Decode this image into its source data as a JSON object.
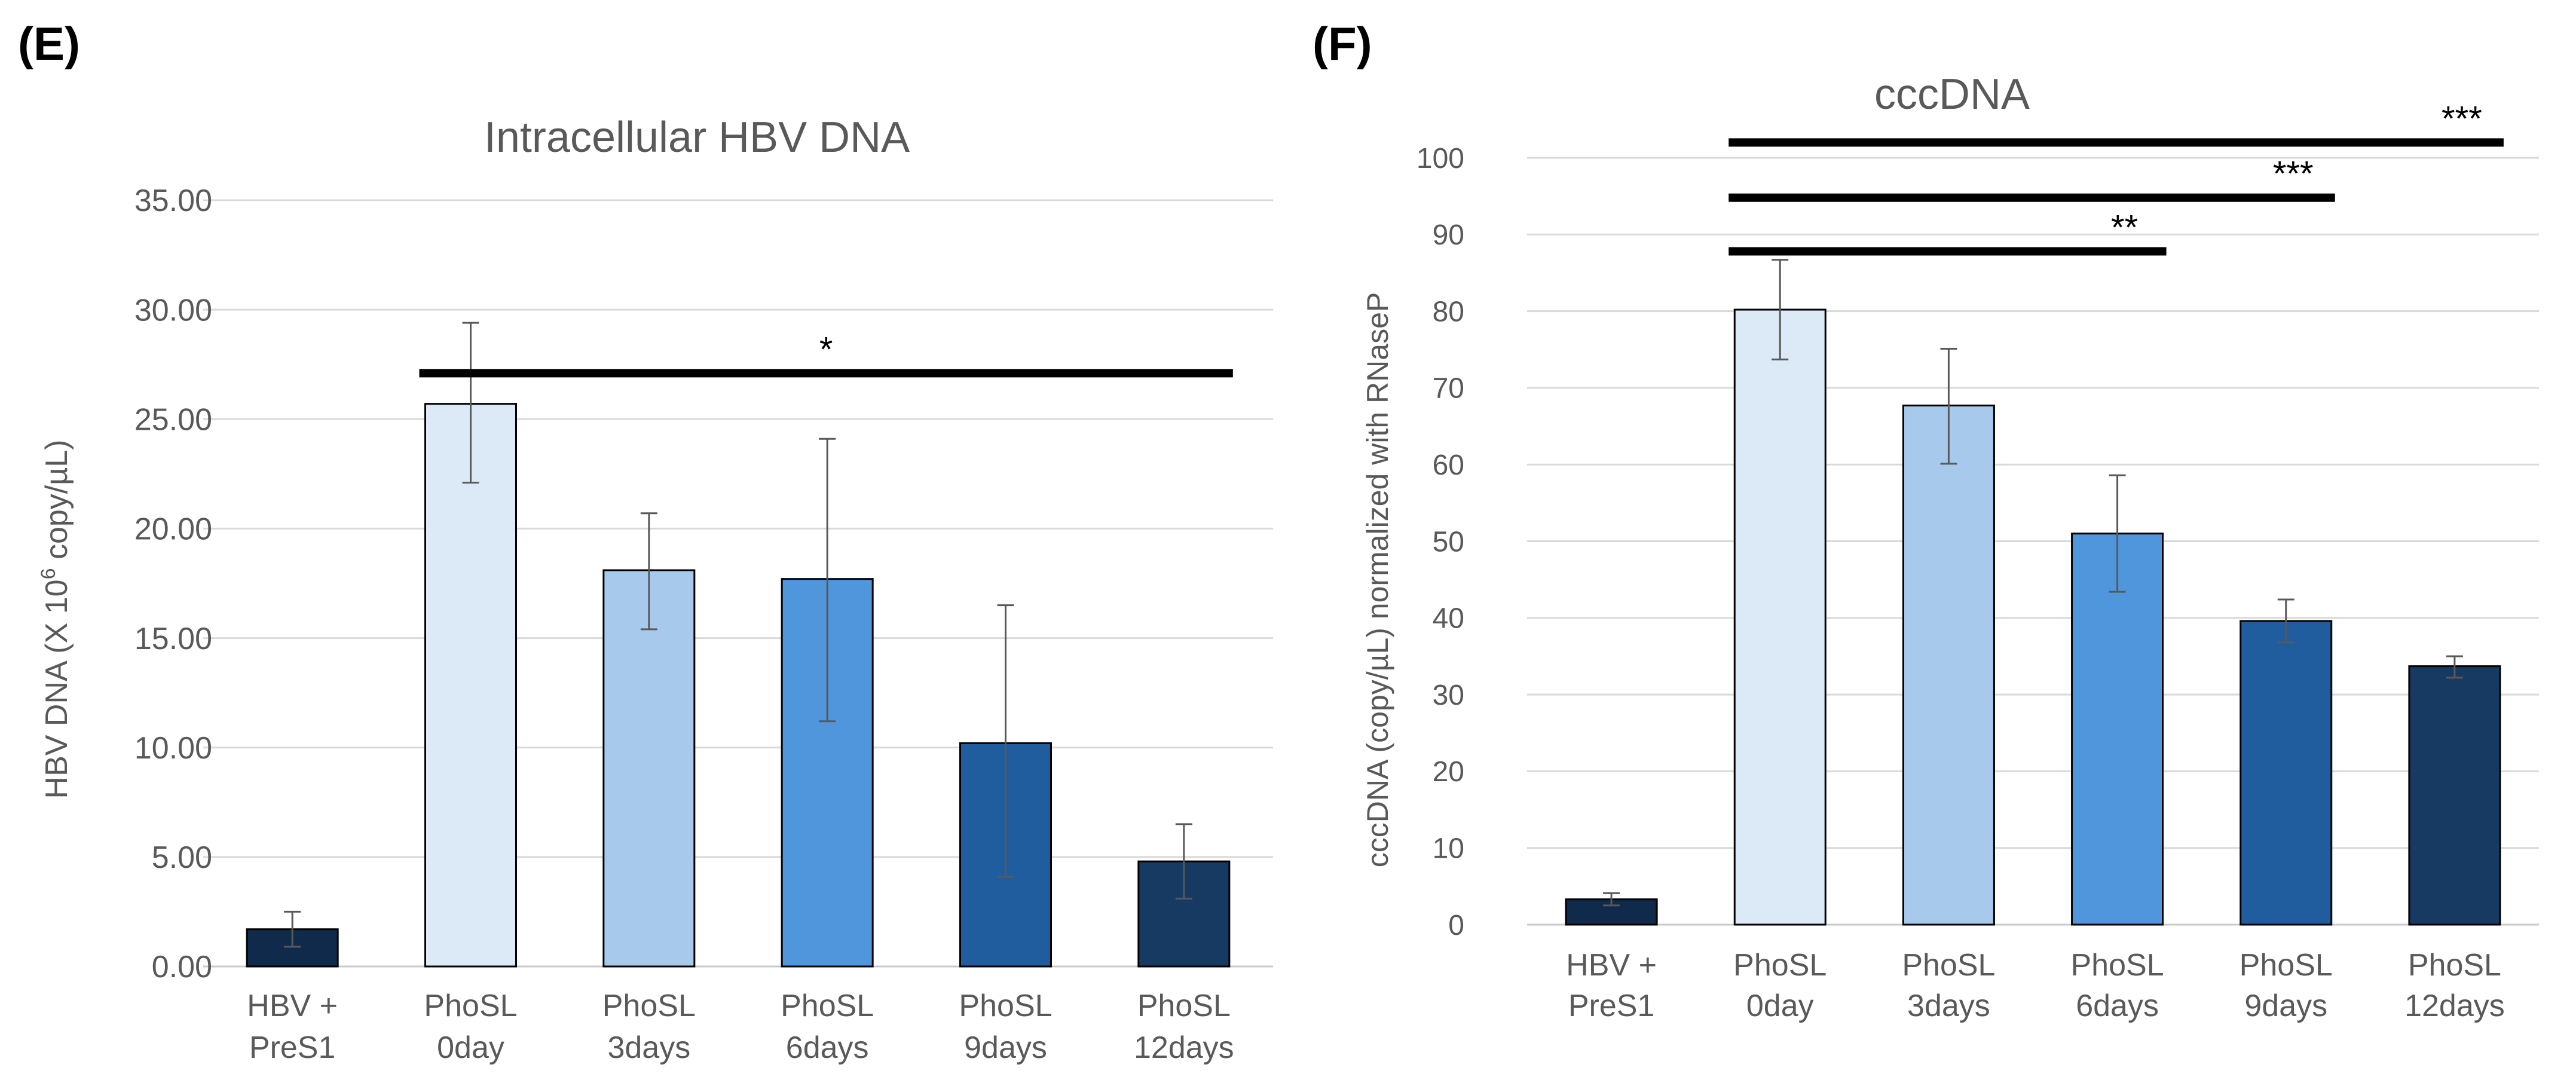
{
  "chart_data": [
    {
      "panel_label": "(E)",
      "type": "bar",
      "title": "Intracellular HBV DNA",
      "ylabel_parts": [
        "HBV DNA (X 10",
        "6",
        " copy/µL)"
      ],
      "xlabel": "",
      "ylim": [
        0,
        35
      ],
      "yticks": [
        0,
        5,
        10,
        15,
        20,
        25,
        30,
        35
      ],
      "ytick_labels": [
        "0.00",
        "5.00",
        "10.00",
        "15.00",
        "20.00",
        "25.00",
        "30.00",
        "35.00"
      ],
      "grid": true,
      "categories": [
        [
          "HBV +",
          "PreS1"
        ],
        [
          "PhoSL",
          "0day"
        ],
        [
          "PhoSL",
          "3days"
        ],
        [
          "PhoSL",
          "6days"
        ],
        [
          "PhoSL",
          "9days"
        ],
        [
          "PhoSL",
          "12days"
        ]
      ],
      "values": [
        1.7,
        25.7,
        18.1,
        17.7,
        10.2,
        4.8
      ],
      "error_low": [
        0.9,
        22.1,
        15.4,
        11.2,
        4.1,
        3.1
      ],
      "error_high": [
        2.5,
        29.4,
        20.7,
        24.1,
        16.5,
        6.5
      ],
      "colors": [
        "#0f2a4a",
        "#dce9f7",
        "#a6c9ec",
        "#4f96dc",
        "#1f5d9e",
        "#173a63"
      ],
      "significance": [
        {
          "from": 1,
          "to": 5,
          "y": 27.1,
          "label": "*"
        }
      ]
    },
    {
      "panel_label": "(F)",
      "type": "bar",
      "title": "cccDNA",
      "ylabel": "cccDNA (copy/µL) normalized with RNaseP",
      "xlabel": "",
      "ylim": [
        0,
        100
      ],
      "yticks": [
        0,
        10,
        20,
        30,
        40,
        50,
        60,
        70,
        80,
        90,
        100
      ],
      "ytick_labels": [
        "0",
        "10",
        "20",
        "30",
        "40",
        "50",
        "60",
        "70",
        "80",
        "90",
        "100"
      ],
      "grid": true,
      "categories": [
        [
          "HBV +",
          "PreS1"
        ],
        [
          "PhoSL",
          "0day"
        ],
        [
          "PhoSL",
          "3days"
        ],
        [
          "PhoSL",
          "6days"
        ],
        [
          "PhoSL",
          "9days"
        ],
        [
          "PhoSL",
          "12days"
        ]
      ],
      "values": [
        3.3,
        80.2,
        67.7,
        51.0,
        39.6,
        33.7
      ],
      "error_low": [
        2.5,
        73.7,
        60.1,
        43.4,
        36.8,
        32.2
      ],
      "error_high": [
        4.1,
        86.7,
        75.1,
        58.6,
        42.4,
        35.0
      ],
      "colors": [
        "#0f2a4a",
        "#dce9f7",
        "#a6c9ec",
        "#4f96dc",
        "#1f5d9e",
        "#173a63"
      ],
      "significance": [
        {
          "from": 1,
          "to": 5,
          "y": 102,
          "label": "***"
        },
        {
          "from": 1,
          "to": 4,
          "y": 94.8,
          "label": "***"
        },
        {
          "from": 1,
          "to": 3,
          "y": 87.8,
          "label": "**"
        }
      ]
    }
  ]
}
